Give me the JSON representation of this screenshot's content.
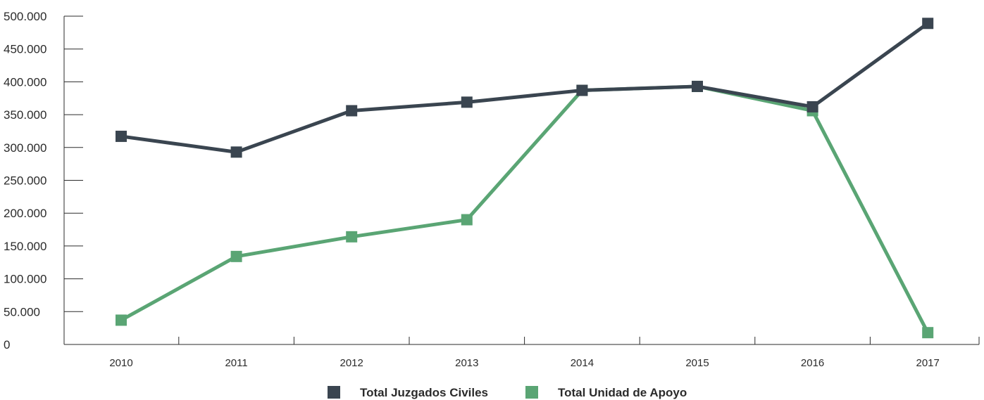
{
  "chart_data": {
    "type": "line",
    "categories": [
      "2010",
      "2011",
      "2012",
      "2013",
      "2014",
      "2015",
      "2016",
      "2017"
    ],
    "y_tick_labels": [
      "0",
      "50.000",
      "100.000",
      "150.000",
      "200.000",
      "250.000",
      "300.000",
      "350.000",
      "400.000",
      "450.000",
      "500.000"
    ],
    "ylim": [
      0,
      500000
    ],
    "grid": false,
    "legend_position": "bottom-center",
    "series": [
      {
        "name": "Total Juzgados Civiles",
        "color": "#3a4550",
        "values": [
          317000,
          293000,
          356000,
          369000,
          387000,
          393000,
          362000,
          489000
        ]
      },
      {
        "name": "Total Unidad de Apoyo",
        "color": "#5aa574",
        "values": [
          37000,
          134000,
          164000,
          190000,
          387000,
          393000,
          356000,
          18000
        ]
      }
    ]
  }
}
